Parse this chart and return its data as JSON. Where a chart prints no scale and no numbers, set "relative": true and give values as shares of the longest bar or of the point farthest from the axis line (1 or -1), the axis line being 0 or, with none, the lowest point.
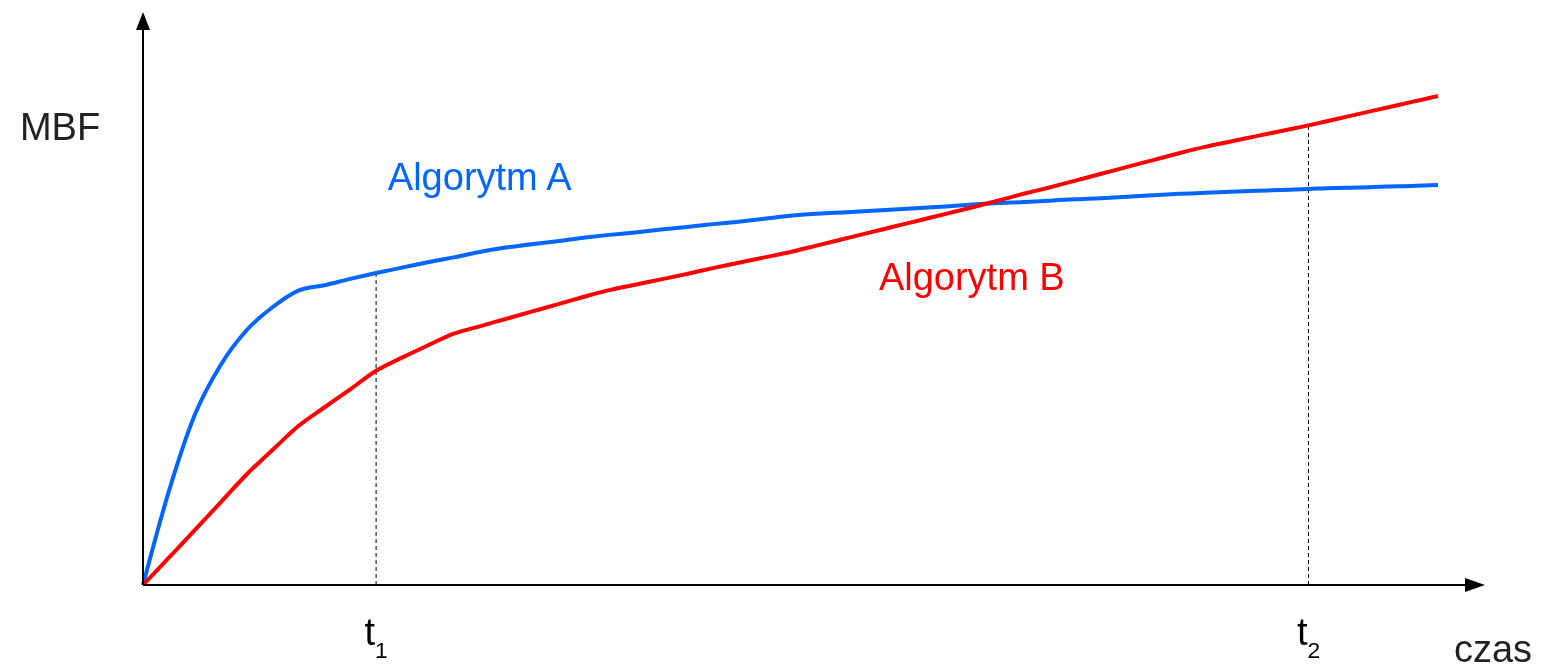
{
  "chart_data": {
    "type": "line",
    "relative": true,
    "xlabel": "czas",
    "ylabel": "MBF",
    "categories": [
      null,
      null,
      null,
      null,
      null,
      null,
      null,
      null,
      null,
      "t$_{1}$",
      null,
      null,
      null,
      null,
      null,
      null,
      null,
      null,
      null,
      null,
      null,
      null,
      null,
      null,
      null,
      null,
      null,
      null,
      null,
      null,
      null,
      null,
      null,
      null,
      null,
      null,
      null,
      null,
      null,
      null,
      null,
      null,
      null,
      null,
      null,
      "t$_{2}$",
      null,
      null,
      null,
      null,
      null
    ],
    "ref_lines": [
      {
        "axis": "x",
        "value": "t$_{1}$",
        "color": "#000000",
        "line_style": "dashed"
      },
      {
        "axis": "x",
        "value": "t$_{2}$",
        "color": "#000000",
        "line_style": "dashed"
      }
    ],
    "series": [
      {
        "name": "Algorytm A",
        "color": "#0066ff",
        "values": [
          0,
          0.192,
          0.348,
          0.45,
          0.521,
          0.568,
          0.602,
          0.613,
          0.626,
          0.638,
          0.649,
          0.66,
          0.67,
          0.681,
          0.69,
          0.697,
          0.703,
          0.71,
          0.716,
          0.721,
          0.727,
          0.732,
          0.738,
          0.743,
          0.749,
          0.755,
          0.759,
          0.762,
          0.765,
          0.768,
          0.771,
          0.774,
          0.778,
          0.781,
          0.783,
          0.786,
          0.789,
          0.791,
          0.794,
          0.797,
          0.8,
          0.802,
          0.804,
          0.806,
          0.808,
          0.81,
          0.812,
          0.813,
          0.815,
          0.816,
          0.818
        ]
      },
      {
        "name": "Algorytm B",
        "color": "#ff0000",
        "values": [
          0,
          0.056,
          0.112,
          0.169,
          0.226,
          0.276,
          0.325,
          0.363,
          0.4,
          0.438,
          0.465,
          0.49,
          0.514,
          0.529,
          0.544,
          0.559,
          0.574,
          0.589,
          0.603,
          0.614,
          0.625,
          0.636,
          0.648,
          0.659,
          0.67,
          0.681,
          0.694,
          0.707,
          0.72,
          0.733,
          0.746,
          0.759,
          0.772,
          0.786,
          0.8,
          0.813,
          0.827,
          0.841,
          0.855,
          0.869,
          0.883,
          0.896,
          0.907,
          0.918,
          0.929,
          0.94,
          0.952,
          0.964,
          0.976,
          0.988,
          1
        ]
      }
    ],
    "marker": "none",
    "line_style": "solid"
  }
}
